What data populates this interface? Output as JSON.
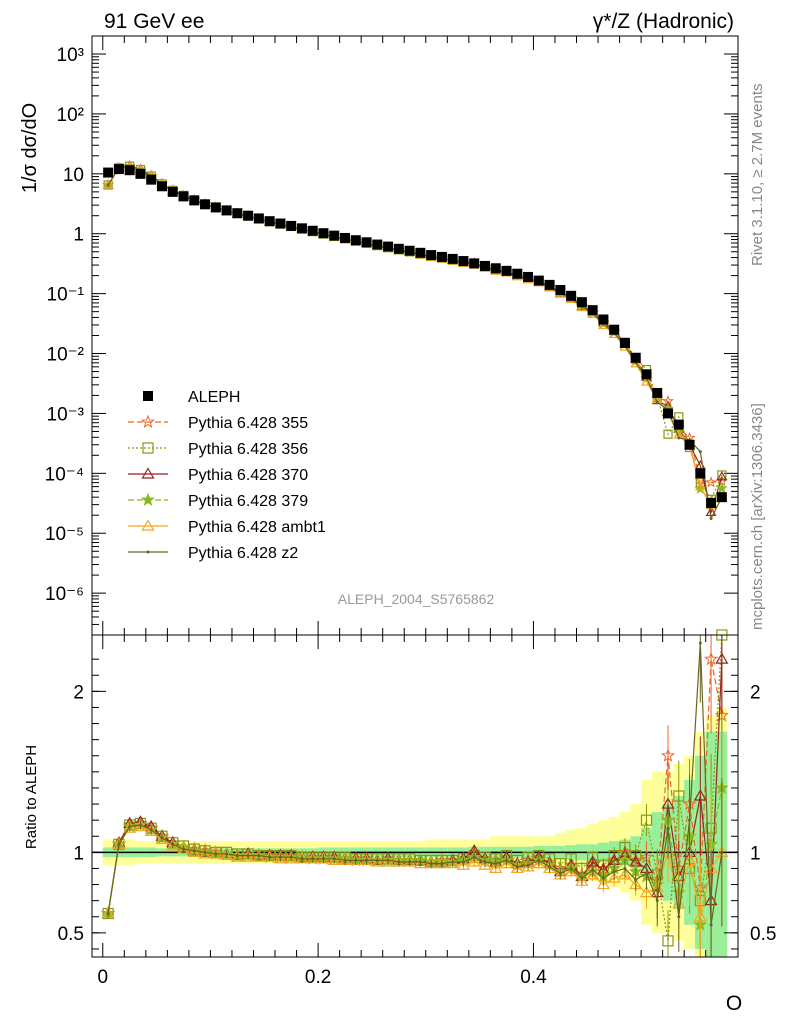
{
  "header": {
    "left": "91 GeV ee",
    "right": "γ*/Z (Hadronic)"
  },
  "side_labels": {
    "rivet": "Rivet 3.1.10, ≥ 2.7M events",
    "mcplots": "mcplots.cern.ch [arXiv:1306.3436]"
  },
  "analysis_id": "ALEPH_2004_S5765862",
  "chart_data": [
    {
      "type": "scatter",
      "panel": "main",
      "ylabel": "1/σ dσ/dO",
      "xlabel": "O",
      "yscale": "log",
      "xlim": [
        -0.01,
        0.59
      ],
      "ylim": [
        2e-07,
        2000
      ],
      "xticks": [
        0,
        0.2,
        0.4
      ],
      "xtick_labels": [
        "0",
        "0.2",
        "0.4"
      ],
      "yticks": [
        1e-06,
        1e-05,
        0.0001,
        0.001,
        0.01,
        0.1,
        1,
        10,
        100,
        1000
      ],
      "ytick_labels": [
        "10⁻⁶",
        "10⁻⁵",
        "10⁻⁴",
        "10⁻³",
        "10⁻²",
        "10⁻¹",
        "1",
        "10",
        "10²",
        "10³"
      ],
      "legend_position": "middle-left",
      "x": [
        0.005,
        0.015,
        0.025,
        0.035,
        0.045,
        0.055,
        0.065,
        0.075,
        0.085,
        0.095,
        0.105,
        0.115,
        0.125,
        0.135,
        0.145,
        0.155,
        0.165,
        0.175,
        0.185,
        0.195,
        0.205,
        0.215,
        0.225,
        0.235,
        0.245,
        0.255,
        0.265,
        0.275,
        0.285,
        0.295,
        0.305,
        0.315,
        0.325,
        0.335,
        0.345,
        0.355,
        0.365,
        0.375,
        0.385,
        0.395,
        0.405,
        0.415,
        0.425,
        0.435,
        0.445,
        0.455,
        0.465,
        0.475,
        0.485,
        0.495,
        0.505,
        0.515,
        0.525,
        0.535,
        0.545,
        0.555,
        0.565,
        0.575
      ],
      "data": {
        "name": "ALEPH",
        "values": [
          10.5,
          12.0,
          11.5,
          10.0,
          8.0,
          6.2,
          5.0,
          4.2,
          3.6,
          3.1,
          2.75,
          2.45,
          2.2,
          2.0,
          1.8,
          1.62,
          1.48,
          1.35,
          1.23,
          1.12,
          1.02,
          0.93,
          0.85,
          0.78,
          0.72,
          0.66,
          0.61,
          0.56,
          0.52,
          0.48,
          0.44,
          0.41,
          0.38,
          0.35,
          0.32,
          0.29,
          0.265,
          0.24,
          0.215,
          0.19,
          0.165,
          0.14,
          0.115,
          0.092,
          0.072,
          0.053,
          0.037,
          0.025,
          0.015,
          0.0085,
          0.0045,
          0.0022,
          0.001,
          0.00065,
          0.0003,
          0.0001,
          3.2e-05,
          4e-05
        ]
      },
      "series": [
        {
          "name": "Pythia 6.428 355",
          "color": "#ee6622",
          "marker": "star-open",
          "line": "dashed"
        },
        {
          "name": "Pythia 6.428 356",
          "color": "#889911",
          "marker": "square-open",
          "line": "dotted"
        },
        {
          "name": "Pythia 6.428 370",
          "color": "#992222",
          "marker": "triangle-open",
          "line": "solid"
        },
        {
          "name": "Pythia 6.428 379",
          "color": "#88bb22",
          "marker": "star-filled",
          "line": "dashed"
        },
        {
          "name": "Pythia 6.428 ambt1",
          "color": "#f5a623",
          "marker": "triangle-open",
          "line": "solid"
        },
        {
          "name": "Pythia 6.428 z2",
          "color": "#666622",
          "marker": "dot",
          "line": "solid"
        }
      ]
    },
    {
      "type": "line",
      "panel": "ratio",
      "ylabel": "Ratio to ALEPH",
      "xlabel": "O",
      "xlim": [
        -0.01,
        0.59
      ],
      "ylim": [
        0.35,
        2.35
      ],
      "yticks": [
        0.5,
        1,
        2
      ],
      "ytick_labels": [
        "0.5",
        "1",
        "2"
      ],
      "x": [
        0.005,
        0.015,
        0.025,
        0.035,
        0.045,
        0.055,
        0.065,
        0.075,
        0.085,
        0.095,
        0.105,
        0.115,
        0.125,
        0.135,
        0.145,
        0.155,
        0.165,
        0.175,
        0.185,
        0.195,
        0.205,
        0.215,
        0.225,
        0.235,
        0.245,
        0.255,
        0.265,
        0.275,
        0.285,
        0.295,
        0.305,
        0.315,
        0.325,
        0.335,
        0.345,
        0.355,
        0.365,
        0.375,
        0.385,
        0.395,
        0.405,
        0.415,
        0.425,
        0.435,
        0.445,
        0.455,
        0.465,
        0.475,
        0.485,
        0.495,
        0.505,
        0.515,
        0.525,
        0.535,
        0.545,
        0.555,
        0.565,
        0.575
      ],
      "band_stat": [
        0.03,
        0.03,
        0.03,
        0.03,
        0.03,
        0.025,
        0.025,
        0.025,
        0.025,
        0.025,
        0.025,
        0.025,
        0.025,
        0.025,
        0.025,
        0.025,
        0.025,
        0.025,
        0.025,
        0.025,
        0.03,
        0.03,
        0.03,
        0.03,
        0.03,
        0.03,
        0.03,
        0.03,
        0.03,
        0.03,
        0.03,
        0.03,
        0.03,
        0.03,
        0.035,
        0.035,
        0.035,
        0.035,
        0.035,
        0.035,
        0.04,
        0.04,
        0.04,
        0.045,
        0.05,
        0.05,
        0.06,
        0.07,
        0.08,
        0.1,
        0.15,
        0.25,
        0.3,
        0.35,
        0.45,
        0.6,
        0.75,
        0.75
      ],
      "band_total": [
        0.08,
        0.08,
        0.08,
        0.07,
        0.07,
        0.07,
        0.07,
        0.07,
        0.07,
        0.07,
        0.07,
        0.07,
        0.07,
        0.07,
        0.07,
        0.07,
        0.07,
        0.07,
        0.07,
        0.07,
        0.07,
        0.07,
        0.07,
        0.07,
        0.07,
        0.07,
        0.07,
        0.07,
        0.07,
        0.07,
        0.08,
        0.08,
        0.08,
        0.08,
        0.08,
        0.08,
        0.1,
        0.1,
        0.1,
        0.1,
        0.1,
        0.1,
        0.12,
        0.14,
        0.15,
        0.18,
        0.2,
        0.22,
        0.25,
        0.3,
        0.45,
        0.5,
        0.5,
        0.55,
        0.6,
        0.75,
        0.85,
        0.9
      ],
      "series": [
        {
          "name": "Pythia 6.428 355",
          "values": [
            0.62,
            1.05,
            1.17,
            1.18,
            1.15,
            1.1,
            1.06,
            1.03,
            1.02,
            1.01,
            1.0,
            0.99,
            0.98,
            0.99,
            0.98,
            0.98,
            0.98,
            0.98,
            0.97,
            0.97,
            0.97,
            0.97,
            0.96,
            0.96,
            0.96,
            0.95,
            0.96,
            0.95,
            0.95,
            0.95,
            0.94,
            0.95,
            0.95,
            0.96,
            0.99,
            0.96,
            0.95,
            0.97,
            0.93,
            0.95,
            0.97,
            0.94,
            0.9,
            0.92,
            0.86,
            0.93,
            0.9,
            0.95,
            1.0,
            0.95,
            0.97,
            0.83,
            1.6,
            0.9,
            1.3,
            0.78,
            2.2,
            1.85
          ]
        },
        {
          "name": "Pythia 6.428 356",
          "values": [
            0.62,
            1.05,
            1.17,
            1.18,
            1.15,
            1.1,
            1.06,
            1.04,
            1.02,
            1.01,
            1.0,
            1.0,
            0.99,
            0.99,
            0.98,
            0.98,
            0.98,
            0.98,
            0.97,
            0.97,
            0.97,
            0.97,
            0.97,
            0.96,
            0.96,
            0.96,
            0.96,
            0.96,
            0.96,
            0.95,
            0.95,
            0.95,
            0.95,
            0.96,
            0.98,
            0.97,
            0.96,
            0.98,
            0.95,
            0.97,
            0.98,
            0.96,
            0.93,
            0.96,
            0.9,
            0.97,
            0.92,
            0.98,
            1.03,
            0.98,
            1.2,
            0.86,
            0.45,
            1.35,
            0.9,
            0.7,
            1.15,
            2.35
          ]
        },
        {
          "name": "Pythia 6.428 370",
          "values": [
            0.62,
            1.06,
            1.18,
            1.19,
            1.16,
            1.1,
            1.06,
            1.03,
            1.01,
            1.0,
            0.99,
            0.99,
            0.98,
            0.99,
            0.98,
            0.98,
            0.98,
            0.98,
            0.97,
            0.97,
            0.97,
            0.97,
            0.96,
            0.96,
            0.96,
            0.95,
            0.96,
            0.95,
            0.95,
            0.95,
            0.94,
            0.94,
            0.95,
            0.96,
            1.01,
            0.96,
            0.94,
            0.97,
            0.93,
            0.94,
            0.97,
            0.93,
            0.88,
            0.92,
            0.85,
            0.94,
            0.89,
            0.95,
            0.98,
            0.94,
            0.9,
            0.75,
            1.3,
            0.85,
            1.0,
            1.35,
            0.7,
            2.2
          ]
        },
        {
          "name": "Pythia 6.428 379",
          "values": [
            0.62,
            1.05,
            1.16,
            1.17,
            1.14,
            1.09,
            1.05,
            1.03,
            1.01,
            1.0,
            0.99,
            0.99,
            0.98,
            0.98,
            0.98,
            0.97,
            0.97,
            0.97,
            0.97,
            0.96,
            0.96,
            0.96,
            0.96,
            0.95,
            0.95,
            0.95,
            0.95,
            0.95,
            0.95,
            0.95,
            0.94,
            0.94,
            0.94,
            0.95,
            0.97,
            0.95,
            0.94,
            0.95,
            0.92,
            0.93,
            0.95,
            0.92,
            0.88,
            0.9,
            0.85,
            0.88,
            0.85,
            0.9,
            0.95,
            0.88,
            0.85,
            0.8,
            1.2,
            0.75,
            1.1,
            0.55,
            1.05,
            1.4
          ]
        },
        {
          "name": "Pythia 6.428 ambt1",
          "values": [
            0.62,
            1.05,
            1.15,
            1.16,
            1.13,
            1.08,
            1.04,
            1.02,
            1.0,
            0.99,
            0.99,
            0.98,
            0.97,
            0.97,
            0.97,
            0.97,
            0.96,
            0.96,
            0.96,
            0.96,
            0.96,
            0.95,
            0.95,
            0.95,
            0.95,
            0.94,
            0.94,
            0.94,
            0.94,
            0.93,
            0.93,
            0.93,
            0.93,
            0.92,
            0.94,
            0.92,
            0.9,
            0.93,
            0.9,
            0.91,
            0.93,
            0.9,
            0.86,
            0.88,
            0.82,
            0.86,
            0.8,
            0.84,
            0.86,
            0.8,
            0.75,
            0.78,
            1.0,
            0.68,
            0.95,
            0.6,
            0.9,
            1.0
          ]
        },
        {
          "name": "Pythia 6.428 z2",
          "values": [
            0.62,
            1.05,
            1.16,
            1.17,
            1.14,
            1.09,
            1.05,
            1.02,
            1.01,
            1.0,
            0.99,
            0.99,
            0.98,
            0.98,
            0.98,
            0.97,
            0.97,
            0.97,
            0.96,
            0.96,
            0.96,
            0.96,
            0.95,
            0.95,
            0.95,
            0.95,
            0.95,
            0.94,
            0.94,
            0.94,
            0.93,
            0.93,
            0.94,
            0.94,
            0.97,
            0.94,
            0.93,
            0.95,
            0.91,
            0.92,
            0.95,
            0.91,
            0.87,
            0.9,
            0.84,
            0.89,
            0.84,
            0.88,
            0.9,
            0.83,
            0.87,
            0.7,
            1.15,
            0.6,
            1.2,
            2.3,
            0.55,
            1.0
          ]
        }
      ]
    }
  ]
}
